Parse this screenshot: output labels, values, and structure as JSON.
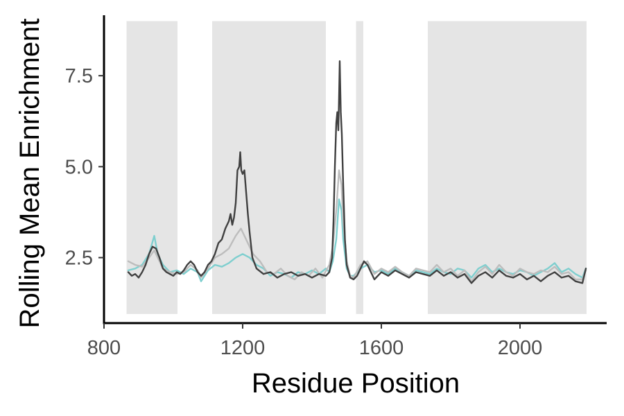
{
  "chart_data": {
    "type": "line",
    "title": "",
    "xlabel": "Residue Position",
    "ylabel": "Rolling Mean Enrichment",
    "xlim": [
      800,
      2250
    ],
    "ylim": [
      0.7,
      9.2
    ],
    "x_ticks": [
      800,
      1200,
      1600,
      2000
    ],
    "x_tick_labels": [
      "800",
      "1200",
      "1600",
      "2000"
    ],
    "y_ticks": [
      2.5,
      5.0,
      7.5
    ],
    "y_tick_labels": [
      "2.5",
      "5.0",
      "7.5"
    ],
    "grid": false,
    "legend": "none",
    "shaded_regions": [
      {
        "x_start": 865,
        "x_end": 1012,
        "y_start": 0.95,
        "y_end": 9.0
      },
      {
        "x_start": 1112,
        "x_end": 1440,
        "y_start": 0.95,
        "y_end": 9.0
      },
      {
        "x_start": 1527,
        "x_end": 1548,
        "y_start": 0.95,
        "y_end": 9.0
      },
      {
        "x_start": 1734,
        "x_end": 2192,
        "y_start": 0.95,
        "y_end": 9.0
      }
    ],
    "series": [
      {
        "color": "#7fcfcf",
        "points": [
          [
            870,
            2.15
          ],
          [
            890,
            2.2
          ],
          [
            910,
            2.3
          ],
          [
            930,
            2.6
          ],
          [
            945,
            3.1
          ],
          [
            955,
            2.6
          ],
          [
            970,
            2.3
          ],
          [
            990,
            2.1
          ],
          [
            1010,
            2.15
          ],
          [
            1030,
            2.05
          ],
          [
            1050,
            2.2
          ],
          [
            1070,
            2.1
          ],
          [
            1080,
            1.85
          ],
          [
            1100,
            2.15
          ],
          [
            1120,
            2.3
          ],
          [
            1140,
            2.25
          ],
          [
            1160,
            2.35
          ],
          [
            1180,
            2.5
          ],
          [
            1200,
            2.6
          ],
          [
            1220,
            2.5
          ],
          [
            1240,
            2.3
          ],
          [
            1260,
            2.2
          ],
          [
            1280,
            2.0
          ],
          [
            1300,
            2.1
          ],
          [
            1320,
            2.05
          ],
          [
            1340,
            1.95
          ],
          [
            1360,
            2.1
          ],
          [
            1380,
            2.05
          ],
          [
            1400,
            2.15
          ],
          [
            1420,
            2.05
          ],
          [
            1440,
            2.2
          ],
          [
            1450,
            2.1
          ],
          [
            1460,
            2.4
          ],
          [
            1470,
            3.0
          ],
          [
            1478,
            4.1
          ],
          [
            1485,
            3.8
          ],
          [
            1490,
            3.0
          ],
          [
            1500,
            2.2
          ],
          [
            1510,
            2.0
          ],
          [
            1520,
            2.0
          ],
          [
            1540,
            2.2
          ],
          [
            1560,
            2.3
          ],
          [
            1580,
            2.1
          ],
          [
            1600,
            2.15
          ],
          [
            1620,
            2.05
          ],
          [
            1640,
            2.2
          ],
          [
            1660,
            2.1
          ],
          [
            1680,
            2.0
          ],
          [
            1700,
            2.15
          ],
          [
            1720,
            2.1
          ],
          [
            1740,
            2.05
          ],
          [
            1760,
            2.2
          ],
          [
            1780,
            2.1
          ],
          [
            1800,
            2.05
          ],
          [
            1820,
            2.2
          ],
          [
            1840,
            2.15
          ],
          [
            1860,
            1.95
          ],
          [
            1880,
            2.2
          ],
          [
            1900,
            2.3
          ],
          [
            1920,
            2.1
          ],
          [
            1940,
            2.2
          ],
          [
            1960,
            2.1
          ],
          [
            1980,
            2.05
          ],
          [
            2000,
            2.15
          ],
          [
            2020,
            2.1
          ],
          [
            2040,
            2.0
          ],
          [
            2060,
            2.1
          ],
          [
            2080,
            2.2
          ],
          [
            2100,
            2.35
          ],
          [
            2120,
            2.1
          ],
          [
            2140,
            2.2
          ],
          [
            2160,
            2.05
          ],
          [
            2180,
            1.95
          ],
          [
            2190,
            2.2
          ]
        ]
      },
      {
        "color": "#bdbdbd",
        "points": [
          [
            870,
            2.4
          ],
          [
            890,
            2.3
          ],
          [
            910,
            2.25
          ],
          [
            930,
            2.5
          ],
          [
            945,
            2.7
          ],
          [
            955,
            2.5
          ],
          [
            970,
            2.2
          ],
          [
            990,
            2.1
          ],
          [
            1010,
            2.05
          ],
          [
            1030,
            2.1
          ],
          [
            1050,
            2.3
          ],
          [
            1070,
            2.15
          ],
          [
            1080,
            1.95
          ],
          [
            1100,
            2.2
          ],
          [
            1120,
            2.5
          ],
          [
            1140,
            2.6
          ],
          [
            1160,
            2.75
          ],
          [
            1180,
            3.1
          ],
          [
            1195,
            3.3
          ],
          [
            1210,
            3.0
          ],
          [
            1230,
            2.6
          ],
          [
            1250,
            2.4
          ],
          [
            1270,
            2.1
          ],
          [
            1290,
            2.05
          ],
          [
            1310,
            2.2
          ],
          [
            1330,
            2.0
          ],
          [
            1350,
            1.9
          ],
          [
            1370,
            2.1
          ],
          [
            1390,
            2.0
          ],
          [
            1410,
            2.2
          ],
          [
            1430,
            1.95
          ],
          [
            1450,
            2.3
          ],
          [
            1460,
            2.8
          ],
          [
            1470,
            3.8
          ],
          [
            1478,
            4.9
          ],
          [
            1485,
            4.5
          ],
          [
            1490,
            3.5
          ],
          [
            1500,
            2.4
          ],
          [
            1510,
            2.0
          ],
          [
            1520,
            1.95
          ],
          [
            1540,
            2.3
          ],
          [
            1560,
            2.4
          ],
          [
            1580,
            2.05
          ],
          [
            1600,
            2.2
          ],
          [
            1620,
            2.1
          ],
          [
            1640,
            2.25
          ],
          [
            1660,
            2.1
          ],
          [
            1680,
            2.0
          ],
          [
            1700,
            2.2
          ],
          [
            1720,
            2.15
          ],
          [
            1740,
            2.1
          ],
          [
            1760,
            2.3
          ],
          [
            1780,
            2.1
          ],
          [
            1800,
            2.2
          ],
          [
            1820,
            2.0
          ],
          [
            1840,
            2.15
          ],
          [
            1860,
            1.85
          ],
          [
            1880,
            2.1
          ],
          [
            1900,
            2.25
          ],
          [
            1920,
            2.05
          ],
          [
            1940,
            2.3
          ],
          [
            1960,
            2.1
          ],
          [
            1980,
            2.0
          ],
          [
            2000,
            2.2
          ],
          [
            2020,
            2.1
          ],
          [
            2040,
            2.05
          ],
          [
            2060,
            2.15
          ],
          [
            2080,
            2.1
          ],
          [
            2100,
            2.25
          ],
          [
            2120,
            2.05
          ],
          [
            2140,
            2.1
          ],
          [
            2160,
            1.9
          ],
          [
            2180,
            1.9
          ],
          [
            2190,
            2.15
          ]
        ]
      },
      {
        "color": "#404040",
        "points": [
          [
            870,
            2.1
          ],
          [
            880,
            2.0
          ],
          [
            890,
            2.05
          ],
          [
            900,
            1.95
          ],
          [
            910,
            2.1
          ],
          [
            920,
            2.3
          ],
          [
            930,
            2.6
          ],
          [
            940,
            2.8
          ],
          [
            950,
            2.75
          ],
          [
            960,
            2.5
          ],
          [
            970,
            2.2
          ],
          [
            980,
            2.1
          ],
          [
            990,
            2.05
          ],
          [
            1000,
            2.0
          ],
          [
            1010,
            2.1
          ],
          [
            1020,
            2.05
          ],
          [
            1030,
            2.15
          ],
          [
            1040,
            2.3
          ],
          [
            1050,
            2.4
          ],
          [
            1060,
            2.3
          ],
          [
            1070,
            2.1
          ],
          [
            1080,
            2.0
          ],
          [
            1090,
            2.1
          ],
          [
            1100,
            2.3
          ],
          [
            1110,
            2.4
          ],
          [
            1120,
            2.6
          ],
          [
            1130,
            2.9
          ],
          [
            1140,
            3.0
          ],
          [
            1150,
            3.3
          ],
          [
            1160,
            3.5
          ],
          [
            1165,
            3.7
          ],
          [
            1170,
            3.4
          ],
          [
            1175,
            3.6
          ],
          [
            1180,
            4.0
          ],
          [
            1185,
            4.9
          ],
          [
            1190,
            5.0
          ],
          [
            1193,
            5.4
          ],
          [
            1196,
            4.9
          ],
          [
            1200,
            4.8
          ],
          [
            1205,
            4.9
          ],
          [
            1210,
            4.3
          ],
          [
            1215,
            3.7
          ],
          [
            1220,
            3.2
          ],
          [
            1228,
            2.5
          ],
          [
            1240,
            2.2
          ],
          [
            1260,
            2.05
          ],
          [
            1280,
            2.1
          ],
          [
            1300,
            1.95
          ],
          [
            1320,
            2.05
          ],
          [
            1340,
            2.1
          ],
          [
            1360,
            2.0
          ],
          [
            1380,
            2.05
          ],
          [
            1400,
            1.95
          ],
          [
            1420,
            2.05
          ],
          [
            1440,
            2.0
          ],
          [
            1450,
            2.1
          ],
          [
            1458,
            2.5
          ],
          [
            1462,
            3.5
          ],
          [
            1466,
            5.0
          ],
          [
            1470,
            6.2
          ],
          [
            1473,
            6.5
          ],
          [
            1476,
            6.0
          ],
          [
            1478,
            6.9
          ],
          [
            1480,
            7.9
          ],
          [
            1483,
            6.5
          ],
          [
            1486,
            5.9
          ],
          [
            1490,
            4.5
          ],
          [
            1495,
            3.0
          ],
          [
            1500,
            2.3
          ],
          [
            1510,
            1.95
          ],
          [
            1520,
            1.9
          ],
          [
            1530,
            2.0
          ],
          [
            1540,
            2.2
          ],
          [
            1550,
            2.4
          ],
          [
            1560,
            2.3
          ],
          [
            1570,
            2.1
          ],
          [
            1580,
            1.9
          ],
          [
            1600,
            2.1
          ],
          [
            1620,
            2.0
          ],
          [
            1640,
            2.15
          ],
          [
            1660,
            2.05
          ],
          [
            1680,
            1.95
          ],
          [
            1700,
            2.1
          ],
          [
            1720,
            2.05
          ],
          [
            1740,
            2.0
          ],
          [
            1760,
            2.15
          ],
          [
            1780,
            2.0
          ],
          [
            1800,
            2.1
          ],
          [
            1820,
            1.95
          ],
          [
            1840,
            2.05
          ],
          [
            1860,
            1.8
          ],
          [
            1880,
            2.0
          ],
          [
            1900,
            2.1
          ],
          [
            1920,
            1.95
          ],
          [
            1940,
            2.15
          ],
          [
            1960,
            2.0
          ],
          [
            1980,
            1.95
          ],
          [
            2000,
            2.05
          ],
          [
            2020,
            1.9
          ],
          [
            2040,
            2.0
          ],
          [
            2060,
            1.85
          ],
          [
            2080,
            2.0
          ],
          [
            2100,
            2.1
          ],
          [
            2120,
            1.95
          ],
          [
            2140,
            2.0
          ],
          [
            2160,
            1.85
          ],
          [
            2180,
            1.8
          ],
          [
            2190,
            2.2
          ]
        ]
      }
    ]
  }
}
